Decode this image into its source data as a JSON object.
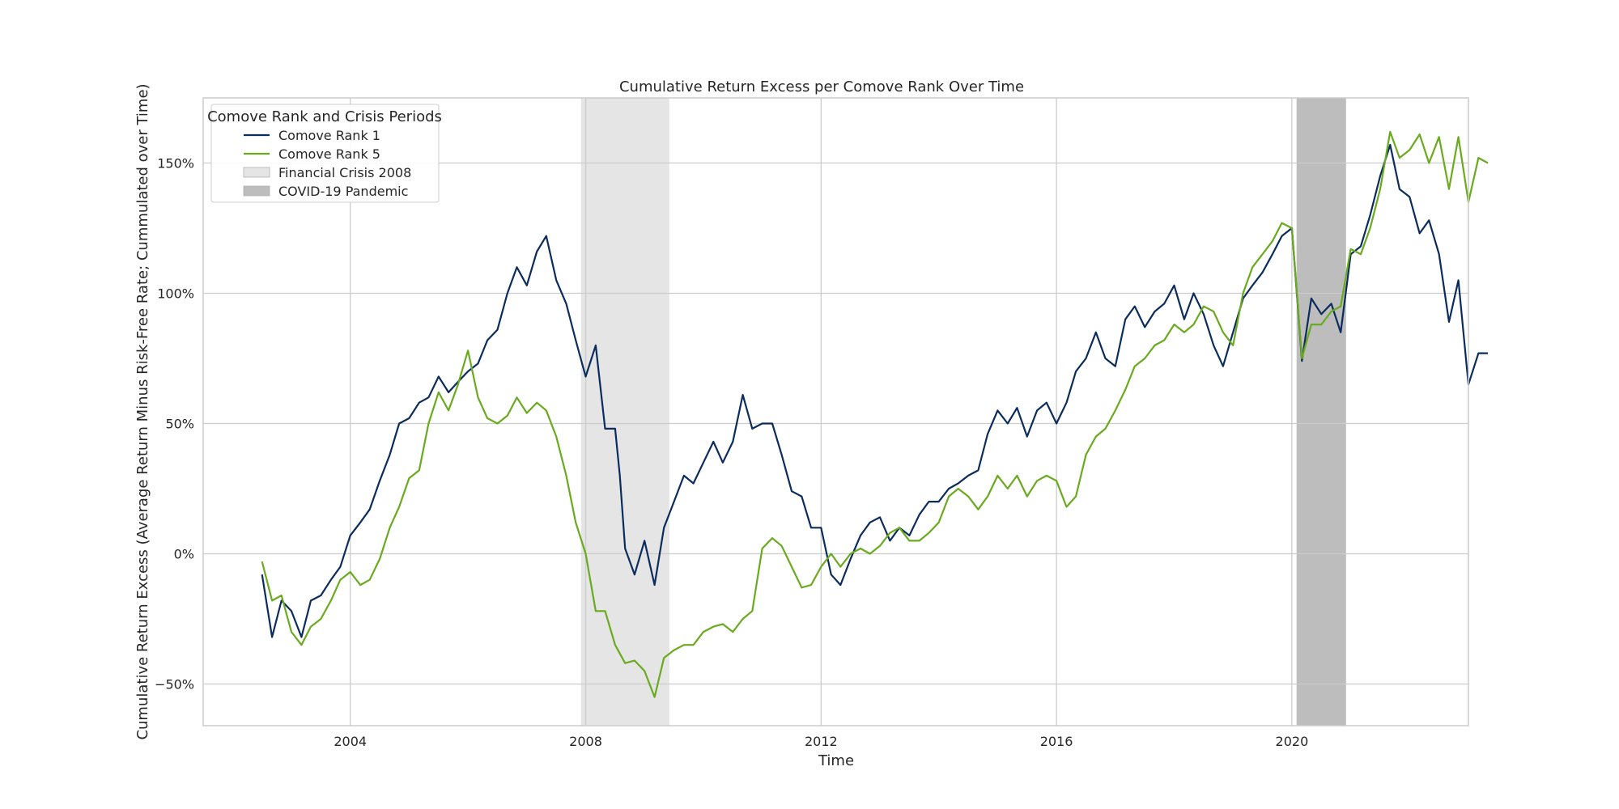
{
  "chart_data": {
    "type": "line",
    "title": "Cumulative Return Excess per Comove Rank Over Time",
    "xlabel": "Time",
    "ylabel": "Cumulative Return Excess (Average Return Minus Risk-Free Rate; Cummulated over Time)",
    "xlim": [
      2001.5,
      2023.0
    ],
    "ylim": [
      -66,
      175
    ],
    "x_ticks": [
      {
        "value": 2004,
        "label": "2004"
      },
      {
        "value": 2008,
        "label": "2008"
      },
      {
        "value": 2012,
        "label": "2012"
      },
      {
        "value": 2016,
        "label": "2016"
      },
      {
        "value": 2020,
        "label": "2020"
      }
    ],
    "y_ticks": [
      {
        "value": -50,
        "label": "−50%"
      },
      {
        "value": 0,
        "label": "0%"
      },
      {
        "value": 50,
        "label": "50%"
      },
      {
        "value": 100,
        "label": "100%"
      },
      {
        "value": 150,
        "label": "150%"
      }
    ],
    "grid": true,
    "legend": {
      "title": "Comove Rank and Crisis Periods",
      "position": "top-left",
      "entries": [
        {
          "label": "Comove Rank 1",
          "kind": "line",
          "color": "#0b2c5c"
        },
        {
          "label": "Comove Rank 5",
          "kind": "line",
          "color": "#6aaa1e"
        },
        {
          "label": "Financial Crisis 2008",
          "kind": "patch",
          "color": "#e5e5e5"
        },
        {
          "label": "COVID-19 Pandemic",
          "kind": "patch",
          "color": "#bdbdbd"
        }
      ]
    },
    "shaded_regions": [
      {
        "label": "Financial Crisis 2008",
        "start": 2007.92,
        "end": 2009.42,
        "color": "#e5e5e5"
      },
      {
        "label": "COVID-19 Pandemic",
        "start": 2020.08,
        "end": 2020.92,
        "color": "#bdbdbd"
      }
    ],
    "series": [
      {
        "name": "Comove Rank 1",
        "color": "#0b2c5c",
        "points": [
          [
            2002.5,
            -8
          ],
          [
            2002.67,
            -32
          ],
          [
            2002.83,
            -18
          ],
          [
            2003.0,
            -22
          ],
          [
            2003.17,
            -32
          ],
          [
            2003.33,
            -18
          ],
          [
            2003.5,
            -16
          ],
          [
            2003.67,
            -10
          ],
          [
            2003.83,
            -5
          ],
          [
            2004.0,
            7
          ],
          [
            2004.17,
            12
          ],
          [
            2004.33,
            17
          ],
          [
            2004.5,
            28
          ],
          [
            2004.67,
            38
          ],
          [
            2004.83,
            50
          ],
          [
            2005.0,
            52
          ],
          [
            2005.17,
            58
          ],
          [
            2005.33,
            60
          ],
          [
            2005.5,
            68
          ],
          [
            2005.67,
            62
          ],
          [
            2005.83,
            66
          ],
          [
            2006.0,
            70
          ],
          [
            2006.17,
            73
          ],
          [
            2006.33,
            82
          ],
          [
            2006.5,
            86
          ],
          [
            2006.67,
            100
          ],
          [
            2006.83,
            110
          ],
          [
            2007.0,
            103
          ],
          [
            2007.17,
            116
          ],
          [
            2007.33,
            122
          ],
          [
            2007.5,
            105
          ],
          [
            2007.67,
            96
          ],
          [
            2007.83,
            82
          ],
          [
            2008.0,
            68
          ],
          [
            2008.17,
            80
          ],
          [
            2008.33,
            48
          ],
          [
            2008.5,
            48
          ],
          [
            2008.58,
            30
          ],
          [
            2008.67,
            2
          ],
          [
            2008.83,
            -8
          ],
          [
            2009.0,
            5
          ],
          [
            2009.17,
            -12
          ],
          [
            2009.33,
            10
          ],
          [
            2009.5,
            20
          ],
          [
            2009.67,
            30
          ],
          [
            2009.83,
            27
          ],
          [
            2010.0,
            35
          ],
          [
            2010.17,
            43
          ],
          [
            2010.33,
            35
          ],
          [
            2010.5,
            43
          ],
          [
            2010.67,
            61
          ],
          [
            2010.83,
            48
          ],
          [
            2011.0,
            50
          ],
          [
            2011.17,
            50
          ],
          [
            2011.33,
            38
          ],
          [
            2011.5,
            24
          ],
          [
            2011.67,
            22
          ],
          [
            2011.83,
            10
          ],
          [
            2012.0,
            10
          ],
          [
            2012.17,
            -8
          ],
          [
            2012.33,
            -12
          ],
          [
            2012.5,
            -2
          ],
          [
            2012.67,
            7
          ],
          [
            2012.83,
            12
          ],
          [
            2013.0,
            14
          ],
          [
            2013.17,
            5
          ],
          [
            2013.33,
            10
          ],
          [
            2013.5,
            7
          ],
          [
            2013.67,
            15
          ],
          [
            2013.83,
            20
          ],
          [
            2014.0,
            20
          ],
          [
            2014.17,
            25
          ],
          [
            2014.33,
            27
          ],
          [
            2014.5,
            30
          ],
          [
            2014.67,
            32
          ],
          [
            2014.83,
            46
          ],
          [
            2015.0,
            55
          ],
          [
            2015.17,
            50
          ],
          [
            2015.33,
            56
          ],
          [
            2015.5,
            45
          ],
          [
            2015.67,
            55
          ],
          [
            2015.83,
            58
          ],
          [
            2016.0,
            50
          ],
          [
            2016.17,
            58
          ],
          [
            2016.33,
            70
          ],
          [
            2016.5,
            75
          ],
          [
            2016.67,
            85
          ],
          [
            2016.83,
            75
          ],
          [
            2017.0,
            72
          ],
          [
            2017.17,
            90
          ],
          [
            2017.33,
            95
          ],
          [
            2017.5,
            87
          ],
          [
            2017.67,
            93
          ],
          [
            2017.83,
            96
          ],
          [
            2018.0,
            103
          ],
          [
            2018.17,
            90
          ],
          [
            2018.33,
            100
          ],
          [
            2018.5,
            92
          ],
          [
            2018.67,
            80
          ],
          [
            2018.83,
            72
          ],
          [
            2019.0,
            85
          ],
          [
            2019.17,
            98
          ],
          [
            2019.33,
            103
          ],
          [
            2019.5,
            108
          ],
          [
            2019.67,
            115
          ],
          [
            2019.83,
            122
          ],
          [
            2020.0,
            125
          ],
          [
            2020.17,
            74
          ],
          [
            2020.33,
            98
          ],
          [
            2020.5,
            92
          ],
          [
            2020.67,
            96
          ],
          [
            2020.83,
            85
          ],
          [
            2021.0,
            115
          ],
          [
            2021.17,
            118
          ],
          [
            2021.33,
            130
          ],
          [
            2021.5,
            145
          ],
          [
            2021.67,
            157
          ],
          [
            2021.83,
            140
          ],
          [
            2022.0,
            137
          ],
          [
            2022.17,
            123
          ],
          [
            2022.33,
            128
          ],
          [
            2022.5,
            115
          ],
          [
            2022.67,
            89
          ],
          [
            2022.83,
            105
          ],
          [
            2023.0,
            65
          ],
          [
            2023.17,
            77
          ],
          [
            2023.33,
            77
          ]
        ]
      },
      {
        "name": "Comove Rank 5",
        "color": "#6aaa1e",
        "points": [
          [
            2002.5,
            -3
          ],
          [
            2002.67,
            -18
          ],
          [
            2002.83,
            -16
          ],
          [
            2003.0,
            -30
          ],
          [
            2003.17,
            -35
          ],
          [
            2003.33,
            -28
          ],
          [
            2003.5,
            -25
          ],
          [
            2003.67,
            -18
          ],
          [
            2003.83,
            -10
          ],
          [
            2004.0,
            -7
          ],
          [
            2004.17,
            -12
          ],
          [
            2004.33,
            -10
          ],
          [
            2004.5,
            -2
          ],
          [
            2004.67,
            10
          ],
          [
            2004.83,
            18
          ],
          [
            2005.0,
            29
          ],
          [
            2005.17,
            32
          ],
          [
            2005.33,
            50
          ],
          [
            2005.5,
            62
          ],
          [
            2005.67,
            55
          ],
          [
            2005.83,
            65
          ],
          [
            2006.0,
            78
          ],
          [
            2006.17,
            60
          ],
          [
            2006.33,
            52
          ],
          [
            2006.5,
            50
          ],
          [
            2006.67,
            53
          ],
          [
            2006.83,
            60
          ],
          [
            2007.0,
            54
          ],
          [
            2007.17,
            58
          ],
          [
            2007.33,
            55
          ],
          [
            2007.5,
            45
          ],
          [
            2007.67,
            30
          ],
          [
            2007.83,
            12
          ],
          [
            2008.0,
            0
          ],
          [
            2008.17,
            -22
          ],
          [
            2008.33,
            -22
          ],
          [
            2008.5,
            -35
          ],
          [
            2008.67,
            -42
          ],
          [
            2008.83,
            -41
          ],
          [
            2009.0,
            -45
          ],
          [
            2009.17,
            -55
          ],
          [
            2009.33,
            -40
          ],
          [
            2009.5,
            -37
          ],
          [
            2009.67,
            -35
          ],
          [
            2009.83,
            -35
          ],
          [
            2010.0,
            -30
          ],
          [
            2010.17,
            -28
          ],
          [
            2010.33,
            -27
          ],
          [
            2010.5,
            -30
          ],
          [
            2010.67,
            -25
          ],
          [
            2010.83,
            -22
          ],
          [
            2011.0,
            2
          ],
          [
            2011.17,
            6
          ],
          [
            2011.33,
            3
          ],
          [
            2011.5,
            -5
          ],
          [
            2011.67,
            -13
          ],
          [
            2011.83,
            -12
          ],
          [
            2012.0,
            -5
          ],
          [
            2012.17,
            0
          ],
          [
            2012.33,
            -5
          ],
          [
            2012.5,
            0
          ],
          [
            2012.67,
            2
          ],
          [
            2012.83,
            0
          ],
          [
            2013.0,
            3
          ],
          [
            2013.17,
            8
          ],
          [
            2013.33,
            10
          ],
          [
            2013.5,
            5
          ],
          [
            2013.67,
            5
          ],
          [
            2013.83,
            8
          ],
          [
            2014.0,
            12
          ],
          [
            2014.17,
            22
          ],
          [
            2014.33,
            25
          ],
          [
            2014.5,
            22
          ],
          [
            2014.67,
            17
          ],
          [
            2014.83,
            22
          ],
          [
            2015.0,
            30
          ],
          [
            2015.17,
            25
          ],
          [
            2015.33,
            30
          ],
          [
            2015.5,
            22
          ],
          [
            2015.67,
            28
          ],
          [
            2015.83,
            30
          ],
          [
            2016.0,
            28
          ],
          [
            2016.17,
            18
          ],
          [
            2016.33,
            22
          ],
          [
            2016.5,
            38
          ],
          [
            2016.67,
            45
          ],
          [
            2016.83,
            48
          ],
          [
            2017.0,
            55
          ],
          [
            2017.17,
            63
          ],
          [
            2017.33,
            72
          ],
          [
            2017.5,
            75
          ],
          [
            2017.67,
            80
          ],
          [
            2017.83,
            82
          ],
          [
            2018.0,
            88
          ],
          [
            2018.17,
            85
          ],
          [
            2018.33,
            88
          ],
          [
            2018.5,
            95
          ],
          [
            2018.67,
            93
          ],
          [
            2018.83,
            85
          ],
          [
            2019.0,
            80
          ],
          [
            2019.17,
            100
          ],
          [
            2019.33,
            110
          ],
          [
            2019.5,
            115
          ],
          [
            2019.67,
            120
          ],
          [
            2019.83,
            127
          ],
          [
            2020.0,
            125
          ],
          [
            2020.17,
            75
          ],
          [
            2020.33,
            88
          ],
          [
            2020.5,
            88
          ],
          [
            2020.67,
            93
          ],
          [
            2020.83,
            95
          ],
          [
            2021.0,
            117
          ],
          [
            2021.17,
            115
          ],
          [
            2021.33,
            125
          ],
          [
            2021.5,
            140
          ],
          [
            2021.67,
            162
          ],
          [
            2021.83,
            152
          ],
          [
            2022.0,
            155
          ],
          [
            2022.17,
            161
          ],
          [
            2022.33,
            150
          ],
          [
            2022.5,
            160
          ],
          [
            2022.67,
            140
          ],
          [
            2022.83,
            160
          ],
          [
            2023.0,
            135
          ],
          [
            2023.17,
            152
          ],
          [
            2023.33,
            150
          ]
        ]
      }
    ]
  }
}
